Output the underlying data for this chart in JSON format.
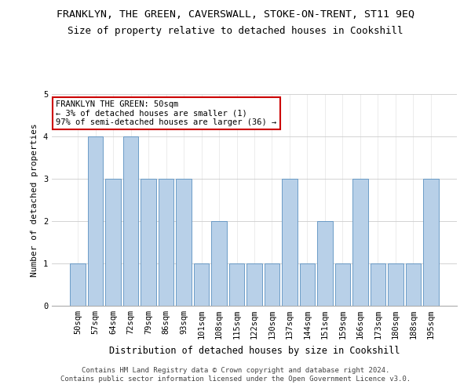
{
  "title": "FRANKLYN, THE GREEN, CAVERSWALL, STOKE-ON-TRENT, ST11 9EQ",
  "subtitle": "Size of property relative to detached houses in Cookshill",
  "xlabel": "Distribution of detached houses by size in Cookshill",
  "ylabel": "Number of detached properties",
  "categories": [
    "50sqm",
    "57sqm",
    "64sqm",
    "72sqm",
    "79sqm",
    "86sqm",
    "93sqm",
    "101sqm",
    "108sqm",
    "115sqm",
    "122sqm",
    "130sqm",
    "137sqm",
    "144sqm",
    "151sqm",
    "159sqm",
    "166sqm",
    "173sqm",
    "180sqm",
    "188sqm",
    "195sqm"
  ],
  "values": [
    1,
    4,
    3,
    4,
    3,
    3,
    3,
    1,
    2,
    1,
    1,
    1,
    3,
    1,
    2,
    1,
    3,
    1,
    1,
    1,
    3
  ],
  "bar_color": "#b8d0e8",
  "bar_edge_color": "#5a90c0",
  "ylim": [
    0,
    5
  ],
  "yticks": [
    0,
    1,
    2,
    3,
    4,
    5
  ],
  "annotation_title": "FRANKLYN THE GREEN: 50sqm",
  "annotation_line1": "← 3% of detached houses are smaller (1)",
  "annotation_line2": "97% of semi-detached houses are larger (36) →",
  "footer1": "Contains HM Land Registry data © Crown copyright and database right 2024.",
  "footer2": "Contains public sector information licensed under the Open Government Licence v3.0.",
  "annotation_box_color": "#ffffff",
  "annotation_box_edge_color": "#cc0000",
  "title_fontsize": 9.5,
  "subtitle_fontsize": 9,
  "xlabel_fontsize": 8.5,
  "ylabel_fontsize": 8,
  "tick_fontsize": 7.5,
  "annotation_fontsize": 7.5,
  "footer_fontsize": 6.5
}
